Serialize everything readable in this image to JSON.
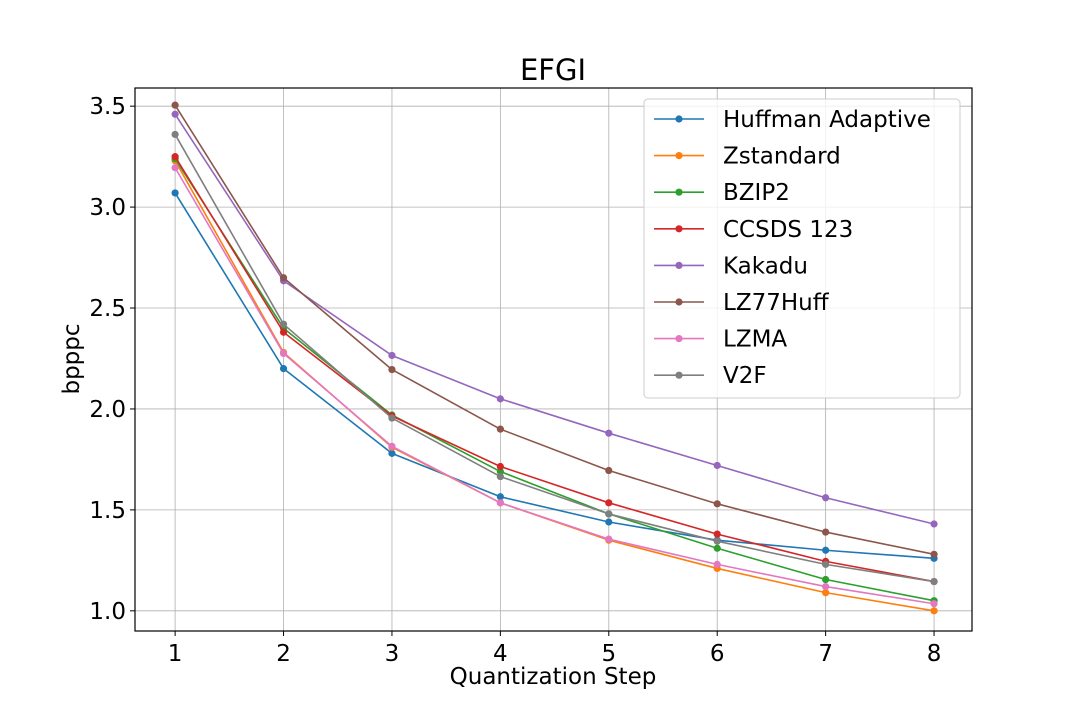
{
  "chart_data": {
    "type": "line",
    "title": "EFGI",
    "xlabel": "Quantization Step",
    "ylabel": "bpppc",
    "x": [
      1,
      2,
      3,
      4,
      5,
      6,
      7,
      8
    ],
    "xlim": [
      0.63,
      8.35
    ],
    "ylim": [
      0.9,
      3.59
    ],
    "xticks": [
      "1",
      "2",
      "3",
      "4",
      "5",
      "6",
      "7",
      "8"
    ],
    "yticks": [
      "1.0",
      "1.5",
      "2.0",
      "2.5",
      "3.0",
      "3.5"
    ],
    "grid": true,
    "legend_position": "top-right",
    "series": [
      {
        "name": "Huffman Adaptive",
        "color": "#1f77b4",
        "values": [
          3.07,
          2.2,
          1.78,
          1.565,
          1.44,
          1.35,
          1.3,
          1.26
        ]
      },
      {
        "name": "Zstandard",
        "color": "#ff7f0e",
        "values": [
          3.23,
          2.28,
          1.81,
          1.535,
          1.35,
          1.21,
          1.09,
          1.0
        ]
      },
      {
        "name": "BZIP2",
        "color": "#2ca02c",
        "values": [
          3.24,
          2.4,
          1.97,
          1.69,
          1.48,
          1.31,
          1.155,
          1.05
        ]
      },
      {
        "name": "CCSDS 123",
        "color": "#d62728",
        "values": [
          3.25,
          2.38,
          1.965,
          1.715,
          1.535,
          1.38,
          1.245,
          1.145
        ]
      },
      {
        "name": "Kakadu",
        "color": "#9467bd",
        "values": [
          3.46,
          2.635,
          2.265,
          2.05,
          1.88,
          1.72,
          1.56,
          1.43
        ]
      },
      {
        "name": "LZ77Huff",
        "color": "#8c564b",
        "values": [
          3.505,
          2.65,
          2.195,
          1.9,
          1.695,
          1.53,
          1.39,
          1.28
        ]
      },
      {
        "name": "LZMA",
        "color": "#e377c2",
        "values": [
          3.195,
          2.275,
          1.815,
          1.535,
          1.355,
          1.23,
          1.12,
          1.035
        ]
      },
      {
        "name": "V2F",
        "color": "#7f7f7f",
        "values": [
          3.36,
          2.42,
          1.955,
          1.665,
          1.48,
          1.345,
          1.23,
          1.145
        ]
      }
    ]
  }
}
